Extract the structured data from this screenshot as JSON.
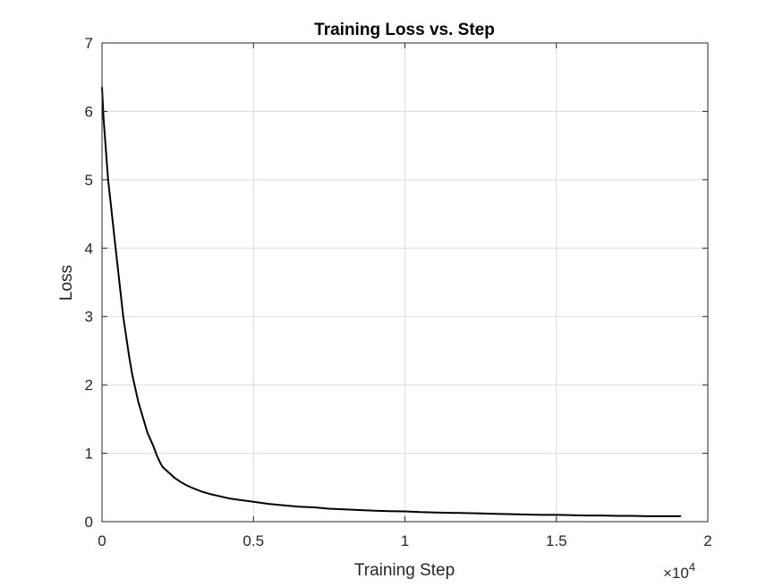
{
  "chart_data": {
    "type": "line",
    "title": "Training Loss vs. Step",
    "xlabel": "Training Step",
    "ylabel": "Loss",
    "xlim": [
      0,
      20000
    ],
    "ylim": [
      0,
      7
    ],
    "x_ticks": [
      0,
      5000,
      10000,
      15000,
      20000
    ],
    "x_tick_labels": [
      "0",
      "0.5",
      "1",
      "1.5",
      "2"
    ],
    "x_exponent_label": "×10",
    "x_exponent_power": "4",
    "y_ticks": [
      0,
      1,
      2,
      3,
      4,
      5,
      6,
      7
    ],
    "y_tick_labels": [
      "0",
      "1",
      "2",
      "3",
      "4",
      "5",
      "6",
      "7"
    ],
    "grid": true,
    "series": [
      {
        "color": "#000000",
        "x": [
          0,
          50,
          100,
          200,
          300,
          400,
          500,
          600,
          700,
          800,
          900,
          1000,
          1100,
          1200,
          1300,
          1400,
          1500,
          1600,
          1700,
          1800,
          1900,
          2000,
          2200,
          2400,
          2600,
          2800,
          3000,
          3300,
          3600,
          3900,
          4200,
          4500,
          5000,
          5500,
          6000,
          6500,
          7000,
          7500,
          8000,
          8500,
          9000,
          9500,
          10000,
          10500,
          11000,
          11500,
          12000,
          12500,
          13000,
          13500,
          14000,
          14500,
          15000,
          15500,
          16000,
          16500,
          17000,
          17500,
          18000,
          18500,
          19100
        ],
        "y": [
          6.35,
          5.9,
          5.6,
          5.0,
          4.6,
          4.2,
          3.8,
          3.4,
          3.0,
          2.7,
          2.4,
          2.15,
          1.95,
          1.75,
          1.6,
          1.45,
          1.3,
          1.2,
          1.1,
          0.98,
          0.88,
          0.8,
          0.72,
          0.64,
          0.58,
          0.53,
          0.49,
          0.44,
          0.4,
          0.37,
          0.34,
          0.32,
          0.29,
          0.26,
          0.24,
          0.22,
          0.21,
          0.19,
          0.18,
          0.17,
          0.16,
          0.155,
          0.15,
          0.14,
          0.135,
          0.13,
          0.125,
          0.12,
          0.115,
          0.11,
          0.105,
          0.1,
          0.1,
          0.095,
          0.09,
          0.09,
          0.085,
          0.085,
          0.08,
          0.08,
          0.08
        ]
      }
    ]
  }
}
